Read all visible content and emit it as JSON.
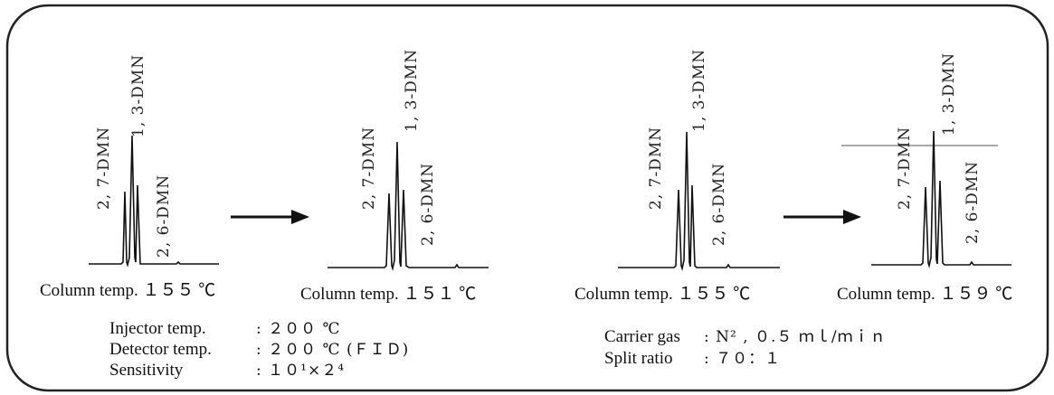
{
  "panels": [
    {
      "peak_labels": {
        "p27": "2, 7-DMN",
        "p13": "1, 3-DMN",
        "p26": "2, 6-DMN"
      },
      "caption": "Column temp. １５５ ℃"
    },
    {
      "peak_labels": {
        "p27": "2, 7-DMN",
        "p13": "1, 3-DMN",
        "p26": "2, 6-DMN"
      },
      "caption": "Column temp. １５１ ℃"
    },
    {
      "peak_labels": {
        "p27": "2, 7-DMN",
        "p13": "1, 3-DMN",
        "p26": "2, 6-DMN"
      },
      "caption": "Column temp. １５５ ℃"
    },
    {
      "peak_labels": {
        "p27": "2, 7-DMN",
        "p13": "1, 3-DMN",
        "p26": "2, 6-DMN"
      },
      "caption": "Column temp. １５９ ℃"
    }
  ],
  "conditions_left": [
    {
      "label": "Injector temp.",
      "value": ": ２００ ℃"
    },
    {
      "label": "Detector temp.",
      "value": ": ２００ ℃ (ＦＩＤ)"
    },
    {
      "label": "Sensitivity",
      "value": ": １０¹×２⁴"
    }
  ],
  "conditions_right": [
    {
      "label": "Carrier gas",
      "value": ": N² , ０.５ ｍｌ/ｍｉｎ"
    },
    {
      "label": "Split ratio",
      "value": ": ７０：１"
    }
  ]
}
